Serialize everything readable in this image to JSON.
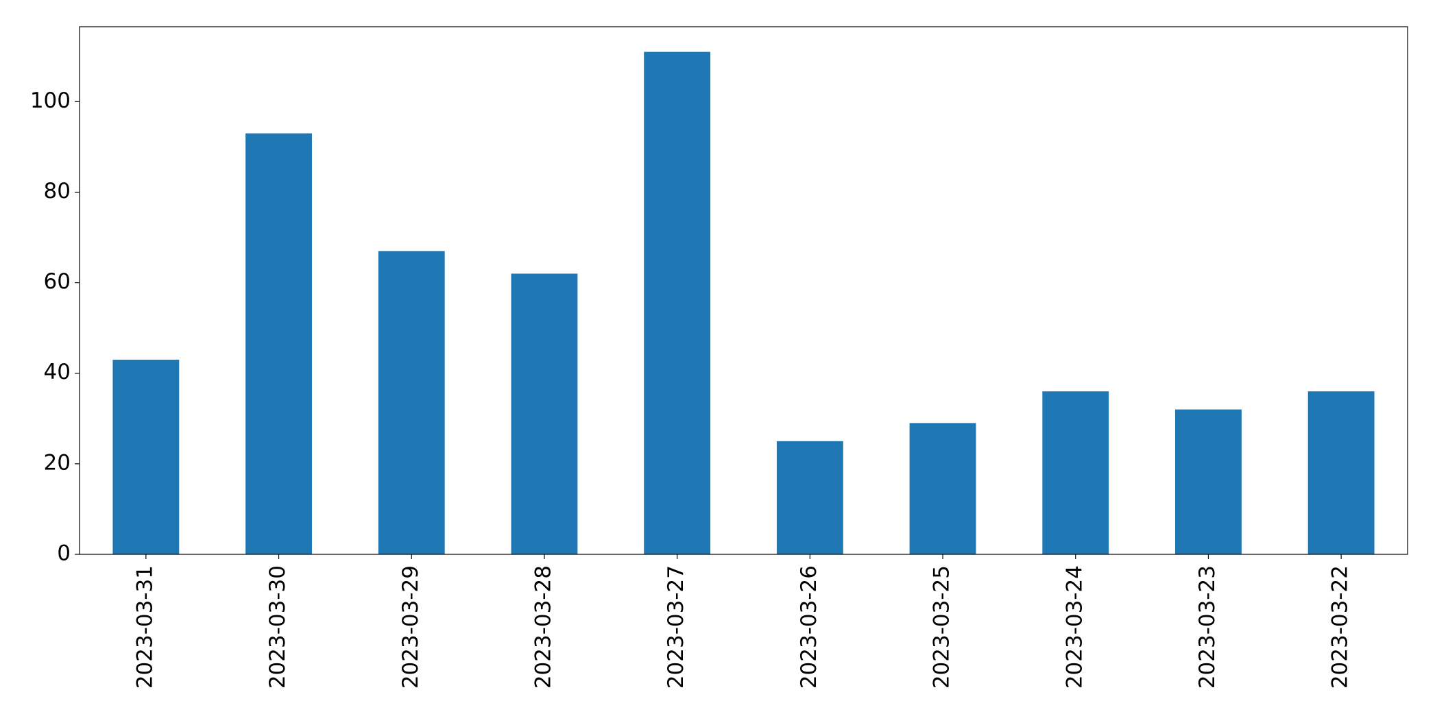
{
  "chart_data": {
    "type": "bar",
    "categories": [
      "2023-03-31",
      "2023-03-30",
      "2023-03-29",
      "2023-03-28",
      "2023-03-27",
      "2023-03-26",
      "2023-03-25",
      "2023-03-24",
      "2023-03-23",
      "2023-03-22"
    ],
    "values": [
      43,
      93,
      67,
      62,
      111,
      25,
      29,
      36,
      32,
      36
    ],
    "color": "#1f77b4",
    "ylim": [
      0,
      116.55
    ],
    "yticks": [
      0,
      20,
      40,
      60,
      80,
      100
    ]
  }
}
